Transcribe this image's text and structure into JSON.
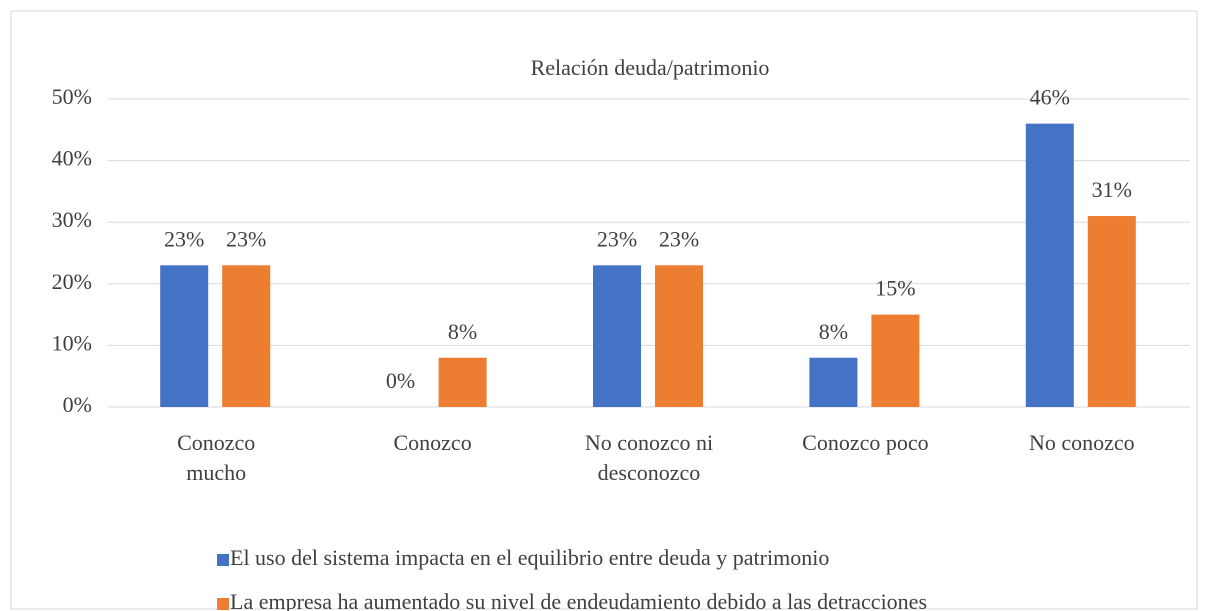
{
  "chart_data": {
    "type": "bar",
    "title": "Relación deuda/patrimonio",
    "categories": [
      "Conozco mucho",
      "Conozco",
      "No conozco ni desconozco",
      "Conozco poco",
      "No conozco"
    ],
    "series": [
      {
        "name": "El uso del sistema impacta en el equilibrio entre deuda y patrimonio",
        "color": "#4472c4",
        "values": [
          23,
          0,
          23,
          8,
          46
        ],
        "value_labels": [
          "23%",
          "0%",
          "23%",
          "8%",
          "46%"
        ]
      },
      {
        "name": "La empresa ha aumentado su nivel de endeudamiento debido a las detracciones",
        "color": "#ed7d31",
        "values": [
          23,
          8,
          23,
          15,
          31
        ],
        "value_labels": [
          "23%",
          "8%",
          "23%",
          "15%",
          "31%"
        ]
      }
    ],
    "ylim": [
      0,
      50
    ],
    "yticks": [
      {
        "value": 0,
        "label": "0%"
      },
      {
        "value": 10,
        "label": "10%"
      },
      {
        "value": 20,
        "label": "20%"
      },
      {
        "value": 30,
        "label": "30%"
      },
      {
        "value": 40,
        "label": "40%"
      },
      {
        "value": 50,
        "label": "50%"
      }
    ],
    "grid": true,
    "legend": "bottom"
  }
}
